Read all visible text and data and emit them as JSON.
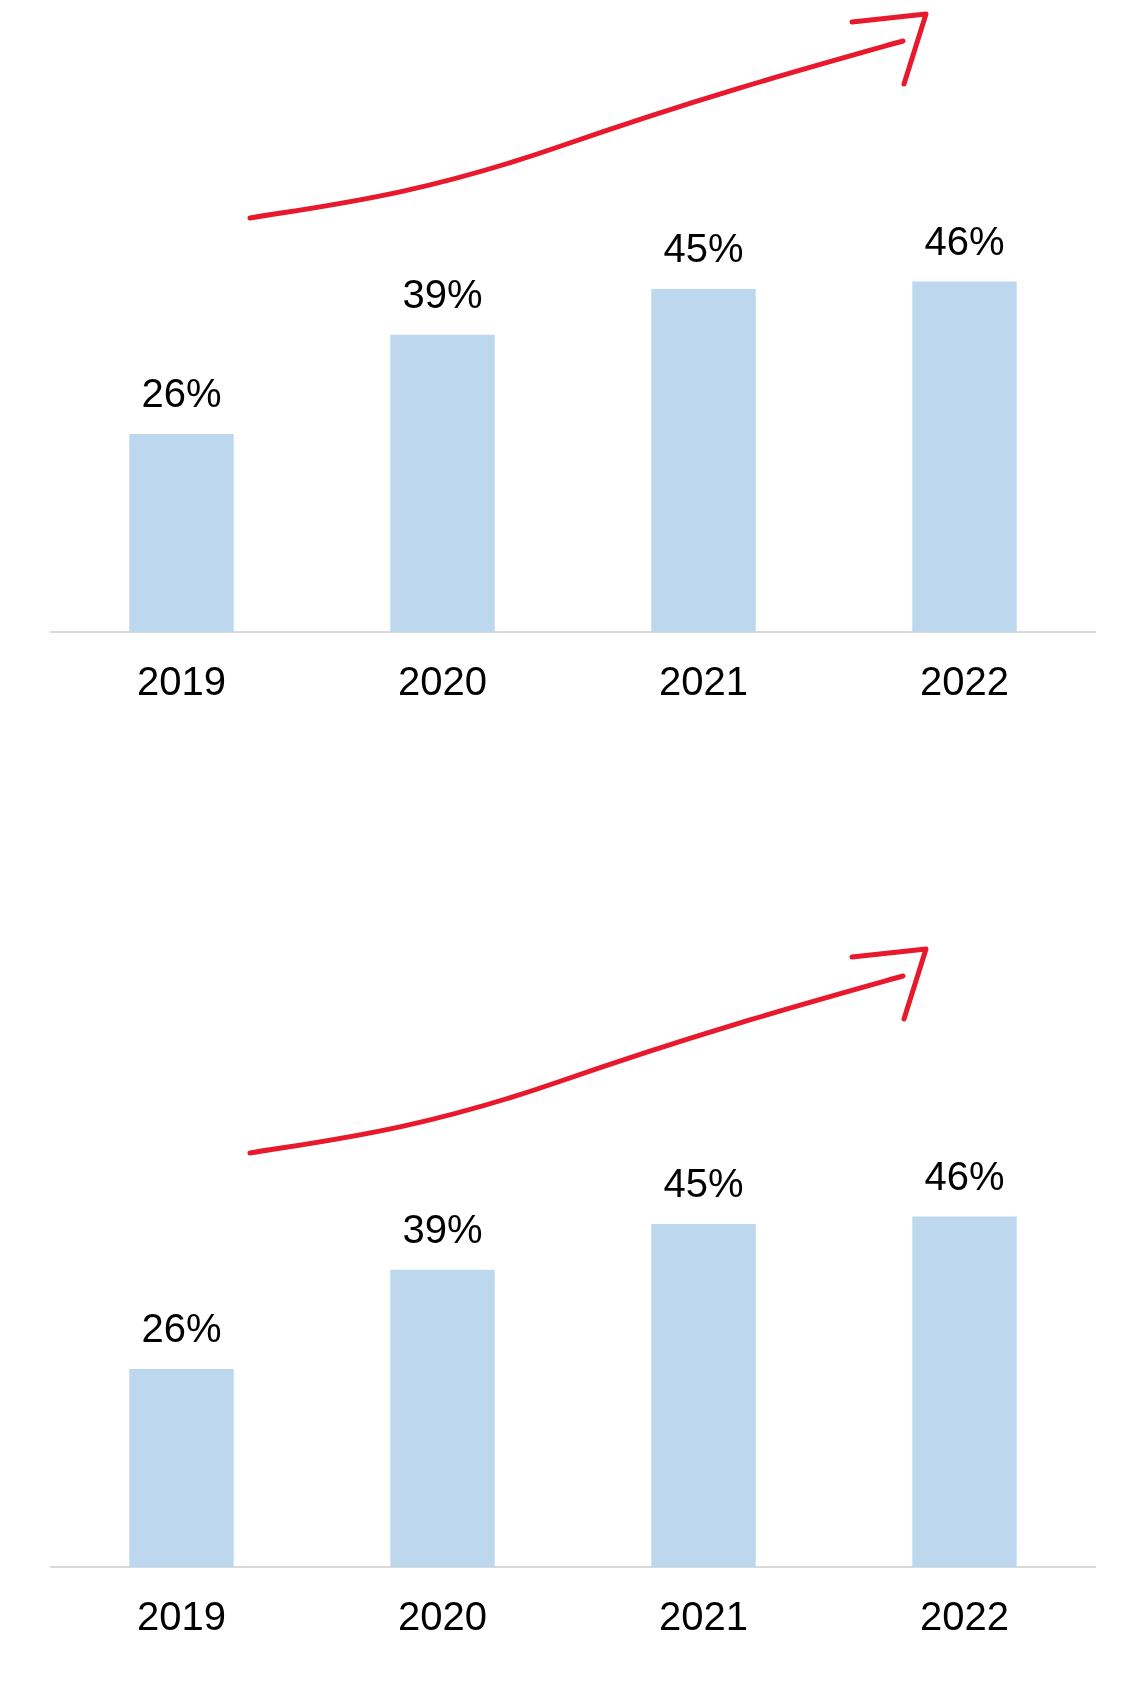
{
  "chart_data": [
    {
      "type": "bar",
      "categories": [
        "2019",
        "2020",
        "2021",
        "2022"
      ],
      "values": [
        26,
        39,
        45,
        46
      ],
      "color": "#bdd7ee",
      "value_labels": [
        "26%",
        "39%",
        "45%",
        "46%"
      ]
    },
    {
      "type": "bar",
      "categories": [
        "2019",
        "2020",
        "2021",
        "2022"
      ],
      "values": [
        26,
        39,
        45,
        46
      ],
      "color": "#bdd7ee",
      "value_labels": [
        "26%",
        "39%",
        "45%",
        "46%"
      ]
    }
  ]
}
